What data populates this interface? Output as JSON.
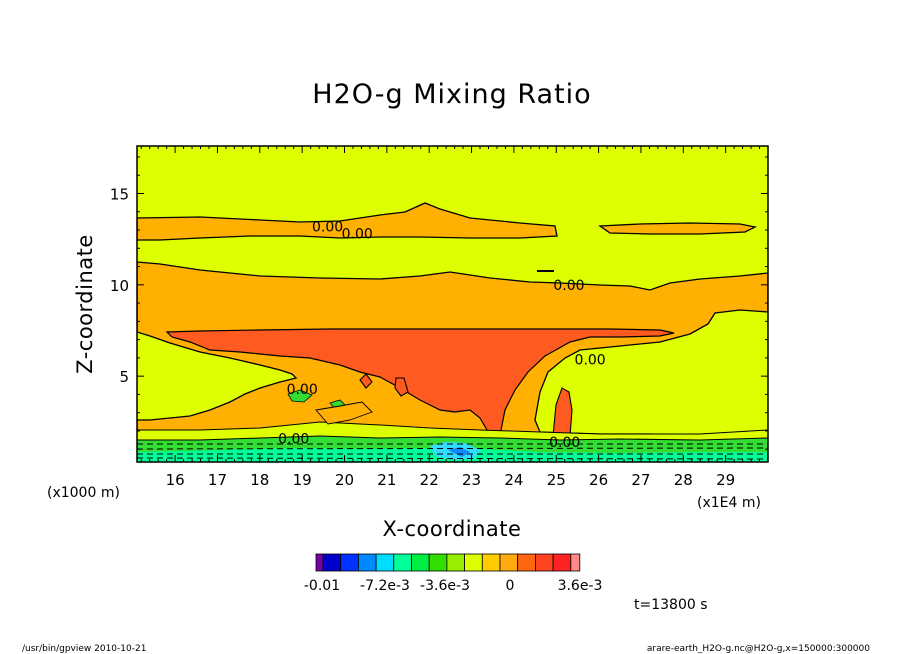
{
  "chart_data": {
    "type": "contour",
    "title": "H2O-g Mixing Ratio",
    "xlabel": "X-coordinate",
    "ylabel": "Z-coordinate",
    "x_unit": "(x1E4 m)",
    "y_unit": "(x1000 m)",
    "xlim": [
      15.1,
      30.0
    ],
    "ylim": [
      0.3,
      17.6
    ],
    "x_ticks": [
      16,
      17,
      18,
      19,
      20,
      21,
      22,
      23,
      24,
      25,
      26,
      27,
      28,
      29
    ],
    "x_tick_labels": [
      "16",
      "17",
      "18",
      "19",
      "20",
      "21",
      "22",
      "23",
      "24",
      "25",
      "26",
      "27",
      "28",
      "29"
    ],
    "y_ticks": [
      5,
      10,
      15
    ],
    "y_tick_labels": [
      "5",
      "10",
      "15"
    ],
    "contour_labels": [
      {
        "text": "0.00",
        "x": 19.6,
        "y": 13.2
      },
      {
        "text": "0.00",
        "x": 20.3,
        "y": 12.8
      },
      {
        "text": "0.00",
        "x": 25.3,
        "y": 10.0
      },
      {
        "text": "0.00",
        "x": 25.8,
        "y": 5.9
      },
      {
        "text": "0.00",
        "x": 19.0,
        "y": 4.3
      },
      {
        "text": "0.00",
        "x": 18.8,
        "y": 1.6
      },
      {
        "text": "0.00",
        "x": 25.2,
        "y": 1.4
      }
    ],
    "colorbar": {
      "colors": [
        "#7700aa",
        "#0000cc",
        "#0033ff",
        "#0088ff",
        "#00ddff",
        "#00ff99",
        "#00ee44",
        "#33dd00",
        "#99ee00",
        "#ddff00",
        "#ffcc00",
        "#ffaa11",
        "#ff6611",
        "#ff4422",
        "#ff2222",
        "#ff8888"
      ],
      "labels": [
        "-0.01",
        "-7.2e-3",
        "-3.6e-3",
        "0",
        "3.6e-3"
      ]
    },
    "time_label": "t=13800 s"
  },
  "footer": {
    "left": "/usr/bin/gpview   2010-10-21",
    "right": "arare-earth_H2O-g.nc@H2O-g,x=150000:300000"
  }
}
